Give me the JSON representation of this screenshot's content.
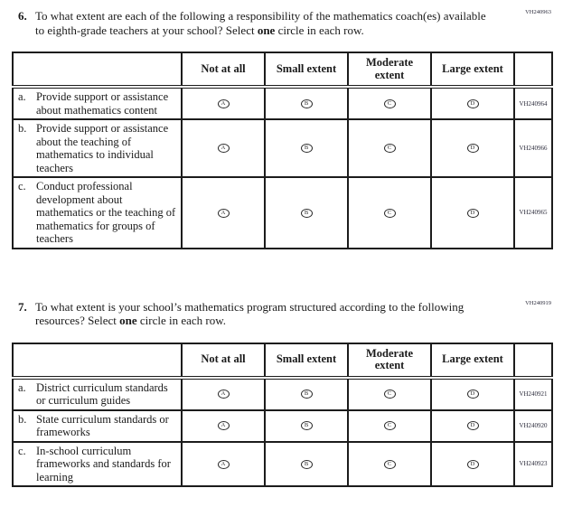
{
  "bubble_letters": [
    "A",
    "B",
    "C",
    "D"
  ],
  "colors": {
    "text": "#1a1a1a",
    "border": "#1c1c1c"
  },
  "questions": [
    {
      "number": "6.",
      "code": "VH240963",
      "text_pre": "To what extent are each of the following a responsibility of the mathematics coach(es) available to eighth-grade teachers at your school? Select ",
      "text_bold": "one",
      "text_post": " circle in each row.",
      "columns": [
        "Not at all",
        "Small extent",
        "Moderate extent",
        "Large extent"
      ],
      "rows": [
        {
          "letter": "a.",
          "label": "Provide support or assistance about mathematics content",
          "code": "VH240964"
        },
        {
          "letter": "b.",
          "label": "Provide support or assistance about the teaching of mathematics to individual teachers",
          "code": "VH240966"
        },
        {
          "letter": "c.",
          "label": "Conduct professional development about mathematics or the teaching of mathematics for groups of teachers",
          "code": "VH240965"
        }
      ]
    },
    {
      "number": "7.",
      "code": "VH240919",
      "text_pre": "To what extent is your school’s mathematics program structured according to the following resources? Select ",
      "text_bold": "one",
      "text_post": " circle in each row.",
      "columns": [
        "Not at all",
        "Small extent",
        "Moderate extent",
        "Large extent"
      ],
      "rows": [
        {
          "letter": "a.",
          "label": "District curriculum standards or curriculum guides",
          "code": "VH240921"
        },
        {
          "letter": "b.",
          "label": "State curriculum standards or frameworks",
          "code": "VH240920"
        },
        {
          "letter": "c.",
          "label": "In-school curriculum frameworks and standards for learning",
          "code": "VH240923"
        }
      ]
    }
  ]
}
